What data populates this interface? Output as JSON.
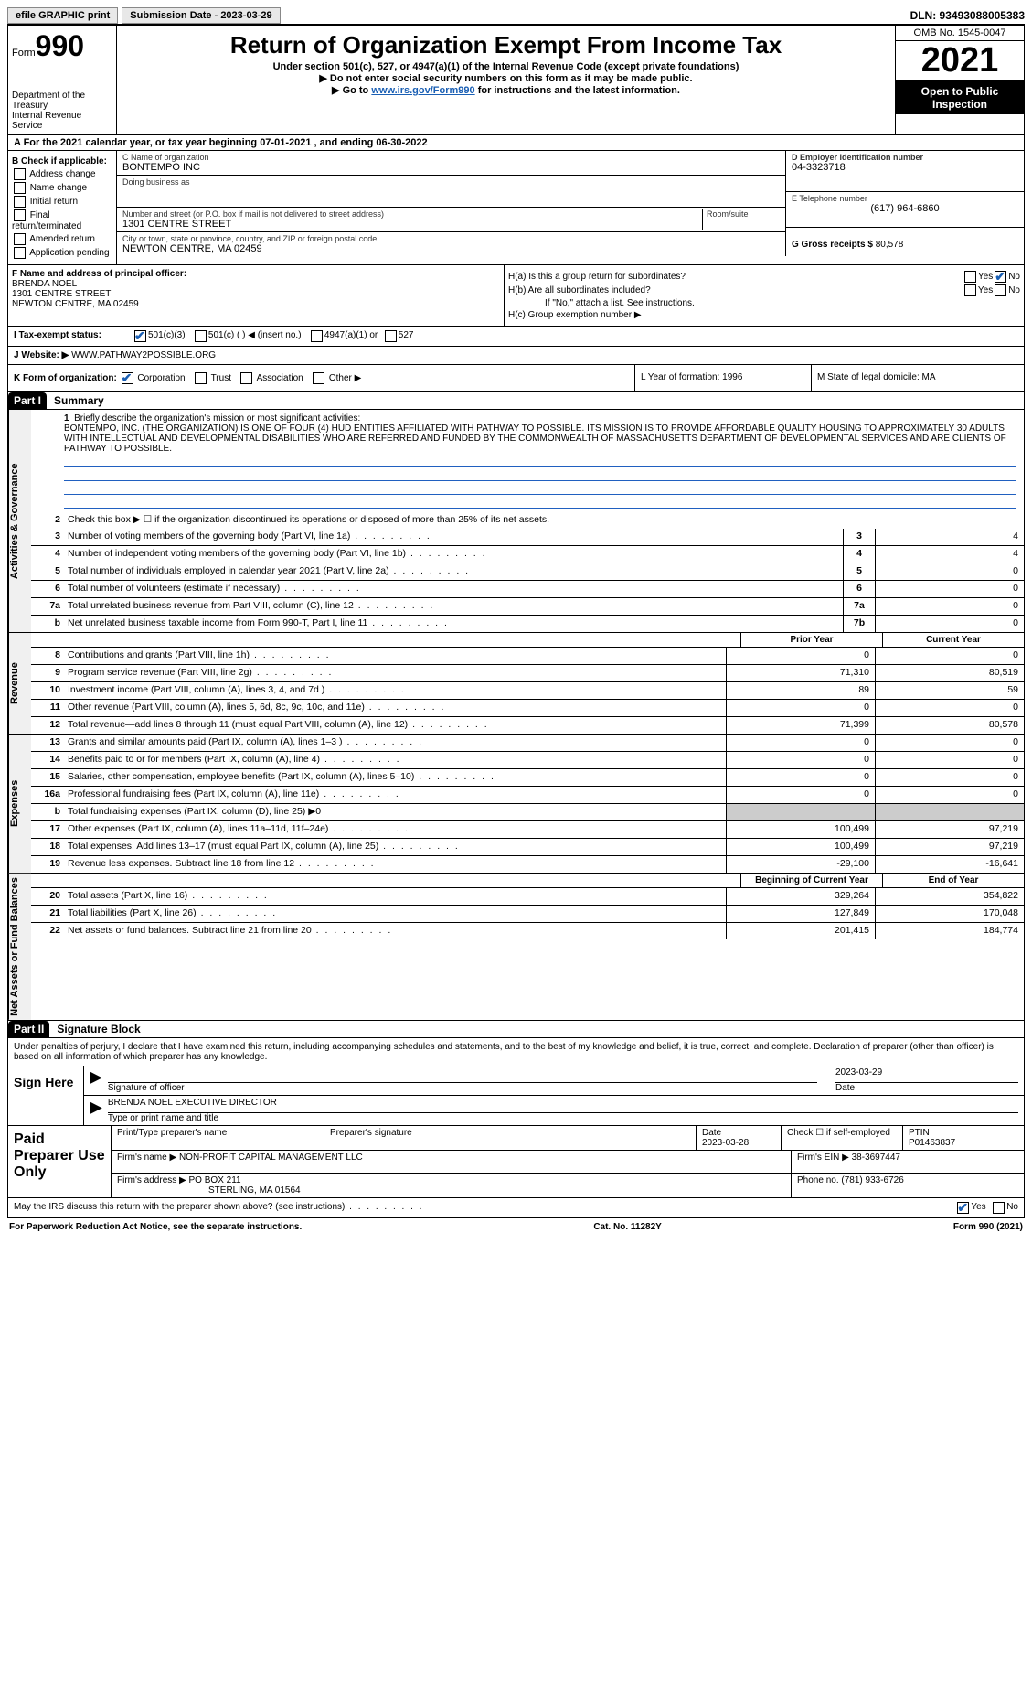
{
  "topbar": {
    "efile": "efile GRAPHIC print",
    "submission": "Submission Date - 2023-03-29",
    "dln": "DLN: 93493088005383"
  },
  "header": {
    "form_label": "Form",
    "form_num": "990",
    "dept": "Department of the Treasury",
    "irs": "Internal Revenue Service",
    "title": "Return of Organization Exempt From Income Tax",
    "subtitle": "Under section 501(c), 527, or 4947(a)(1) of the Internal Revenue Code (except private foundations)",
    "note1": "▶ Do not enter social security numbers on this form as it may be made public.",
    "note2_pre": "▶ Go to ",
    "note2_link": "www.irs.gov/Form990",
    "note2_post": " for instructions and the latest information.",
    "omb": "OMB No. 1545-0047",
    "year": "2021",
    "open": "Open to Public Inspection"
  },
  "rowA": "A For the 2021 calendar year, or tax year beginning 07-01-2021     , and ending 06-30-2022",
  "colB": {
    "hdr": "B Check if applicable:",
    "items": [
      "Address change",
      "Name change",
      "Initial return",
      "Final return/terminated",
      "Amended return",
      "Application pending"
    ]
  },
  "colC": {
    "name_lbl": "C Name of organization",
    "name": "BONTEMPO INC",
    "dba_lbl": "Doing business as",
    "dba": "",
    "addr_lbl": "Number and street (or P.O. box if mail is not delivered to street address)",
    "addr": "1301 CENTRE STREET",
    "room_lbl": "Room/suite",
    "city_lbl": "City or town, state or province, country, and ZIP or foreign postal code",
    "city": "NEWTON CENTRE, MA  02459"
  },
  "colD": {
    "ein_lbl": "D Employer identification number",
    "ein": "04-3323718",
    "tel_lbl": "E Telephone number",
    "tel": "(617) 964-6860",
    "gross_lbl": "G Gross receipts $",
    "gross": "80,578"
  },
  "colF": {
    "lbl": "F Name and address of principal officer:",
    "name": "BRENDA NOEL",
    "addr1": "1301 CENTRE STREET",
    "addr2": "NEWTON CENTRE, MA  02459"
  },
  "colH": {
    "ha": "H(a)  Is this a group return for subordinates?",
    "hb": "H(b)  Are all subordinates included?",
    "hb_note": "If \"No,\" attach a list. See instructions.",
    "hc": "H(c)  Group exemption number ▶",
    "yes": "Yes",
    "no": "No"
  },
  "rowI": {
    "lbl": "I    Tax-exempt status:",
    "opts": [
      "501(c)(3)",
      "501(c) (  ) ◀ (insert no.)",
      "4947(a)(1) or",
      "527"
    ]
  },
  "rowJ": {
    "lbl": "J   Website: ▶",
    "val": "WWW.PATHWAY2POSSIBLE.ORG"
  },
  "rowK": {
    "lbl": "K Form of organization:",
    "opts": [
      "Corporation",
      "Trust",
      "Association",
      "Other ▶"
    ],
    "L": "L Year of formation: 1996",
    "M": "M State of legal domicile: MA"
  },
  "part1": {
    "hdr": "Part I",
    "title": "Summary"
  },
  "vtabs": {
    "gov": "Activities & Governance",
    "rev": "Revenue",
    "exp": "Expenses",
    "net": "Net Assets or Fund Balances"
  },
  "mission": {
    "num": "1",
    "lbl": "Briefly describe the organization's mission or most significant activities:",
    "txt": "BONTEMPO, INC. (THE ORGANIZATION) IS ONE OF FOUR (4) HUD ENTITIES AFFILIATED WITH PATHWAY TO POSSIBLE. ITS MISSION IS TO PROVIDE AFFORDABLE QUALITY HOUSING TO APPROXIMATELY 30 ADULTS WITH INTELLECTUAL AND DEVELOPMENTAL DISABILITIES WHO ARE REFERRED AND FUNDED BY THE COMMONWEALTH OF MASSACHUSETTS DEPARTMENT OF DEVELOPMENTAL SERVICES AND ARE CLIENTS OF PATHWAY TO POSSIBLE."
  },
  "lines_gov": [
    {
      "n": "2",
      "t": "Check this box ▶ ☐  if the organization discontinued its operations or disposed of more than 25% of its net assets."
    },
    {
      "n": "3",
      "t": "Number of voting members of the governing body (Part VI, line 1a)",
      "b": "3",
      "v": "4"
    },
    {
      "n": "4",
      "t": "Number of independent voting members of the governing body (Part VI, line 1b)",
      "b": "4",
      "v": "4"
    },
    {
      "n": "5",
      "t": "Total number of individuals employed in calendar year 2021 (Part V, line 2a)",
      "b": "5",
      "v": "0"
    },
    {
      "n": "6",
      "t": "Total number of volunteers (estimate if necessary)",
      "b": "6",
      "v": "0"
    },
    {
      "n": "7a",
      "t": "Total unrelated business revenue from Part VIII, column (C), line 12",
      "b": "7a",
      "v": "0"
    },
    {
      "n": "b",
      "t": "Net unrelated business taxable income from Form 990-T, Part I, line 11",
      "b": "7b",
      "v": "0"
    }
  ],
  "col_hdrs": {
    "prior": "Prior Year",
    "current": "Current Year",
    "boy": "Beginning of Current Year",
    "eoy": "End of Year"
  },
  "lines_rev": [
    {
      "n": "8",
      "t": "Contributions and grants (Part VIII, line 1h)",
      "p": "0",
      "c": "0"
    },
    {
      "n": "9",
      "t": "Program service revenue (Part VIII, line 2g)",
      "p": "71,310",
      "c": "80,519"
    },
    {
      "n": "10",
      "t": "Investment income (Part VIII, column (A), lines 3, 4, and 7d )",
      "p": "89",
      "c": "59"
    },
    {
      "n": "11",
      "t": "Other revenue (Part VIII, column (A), lines 5, 6d, 8c, 9c, 10c, and 11e)",
      "p": "0",
      "c": "0"
    },
    {
      "n": "12",
      "t": "Total revenue—add lines 8 through 11 (must equal Part VIII, column (A), line 12)",
      "p": "71,399",
      "c": "80,578"
    }
  ],
  "lines_exp": [
    {
      "n": "13",
      "t": "Grants and similar amounts paid (Part IX, column (A), lines 1–3 )",
      "p": "0",
      "c": "0"
    },
    {
      "n": "14",
      "t": "Benefits paid to or for members (Part IX, column (A), line 4)",
      "p": "0",
      "c": "0"
    },
    {
      "n": "15",
      "t": "Salaries, other compensation, employee benefits (Part IX, column (A), lines 5–10)",
      "p": "0",
      "c": "0"
    },
    {
      "n": "16a",
      "t": "Professional fundraising fees (Part IX, column (A), line 11e)",
      "p": "0",
      "c": "0"
    },
    {
      "n": "b",
      "t": "Total fundraising expenses (Part IX, column (D), line 25) ▶0",
      "shade": true
    },
    {
      "n": "17",
      "t": "Other expenses (Part IX, column (A), lines 11a–11d, 11f–24e)",
      "p": "100,499",
      "c": "97,219"
    },
    {
      "n": "18",
      "t": "Total expenses. Add lines 13–17 (must equal Part IX, column (A), line 25)",
      "p": "100,499",
      "c": "97,219"
    },
    {
      "n": "19",
      "t": "Revenue less expenses. Subtract line 18 from line 12",
      "p": "-29,100",
      "c": "-16,641"
    }
  ],
  "lines_net": [
    {
      "n": "20",
      "t": "Total assets (Part X, line 16)",
      "p": "329,264",
      "c": "354,822"
    },
    {
      "n": "21",
      "t": "Total liabilities (Part X, line 26)",
      "p": "127,849",
      "c": "170,048"
    },
    {
      "n": "22",
      "t": "Net assets or fund balances. Subtract line 21 from line 20",
      "p": "201,415",
      "c": "184,774"
    }
  ],
  "part2": {
    "hdr": "Part II",
    "title": "Signature Block"
  },
  "sig": {
    "decl": "Under penalties of perjury, I declare that I have examined this return, including accompanying schedules and statements, and to the best of my knowledge and belief, it is true, correct, and complete. Declaration of preparer (other than officer) is based on all information of which preparer has any knowledge.",
    "sign_here": "Sign Here",
    "sig_officer": "Signature of officer",
    "date": "Date",
    "sig_date": "2023-03-29",
    "name_title": "BRENDA NOEL  EXECUTIVE DIRECTOR",
    "type_name": "Type or print name and title"
  },
  "prep": {
    "hdr": "Paid Preparer Use Only",
    "print_name_lbl": "Print/Type preparer's name",
    "sig_lbl": "Preparer's signature",
    "date_lbl": "Date",
    "date": "2023-03-28",
    "check_lbl": "Check ☐ if self-employed",
    "ptin_lbl": "PTIN",
    "ptin": "P01463837",
    "firm_name_lbl": "Firm's name     ▶",
    "firm_name": "NON-PROFIT CAPITAL MANAGEMENT LLC",
    "firm_ein_lbl": "Firm's EIN ▶",
    "firm_ein": "38-3697447",
    "firm_addr_lbl": "Firm's address ▶",
    "firm_addr1": "PO BOX 211",
    "firm_addr2": "STERLING, MA  01564",
    "phone_lbl": "Phone no.",
    "phone": "(781) 933-6726"
  },
  "may_irs": "May the IRS discuss this return with the preparer shown above? (see instructions)",
  "footer": {
    "left": "For Paperwork Reduction Act Notice, see the separate instructions.",
    "mid": "Cat. No. 11282Y",
    "right": "Form 990 (2021)"
  }
}
